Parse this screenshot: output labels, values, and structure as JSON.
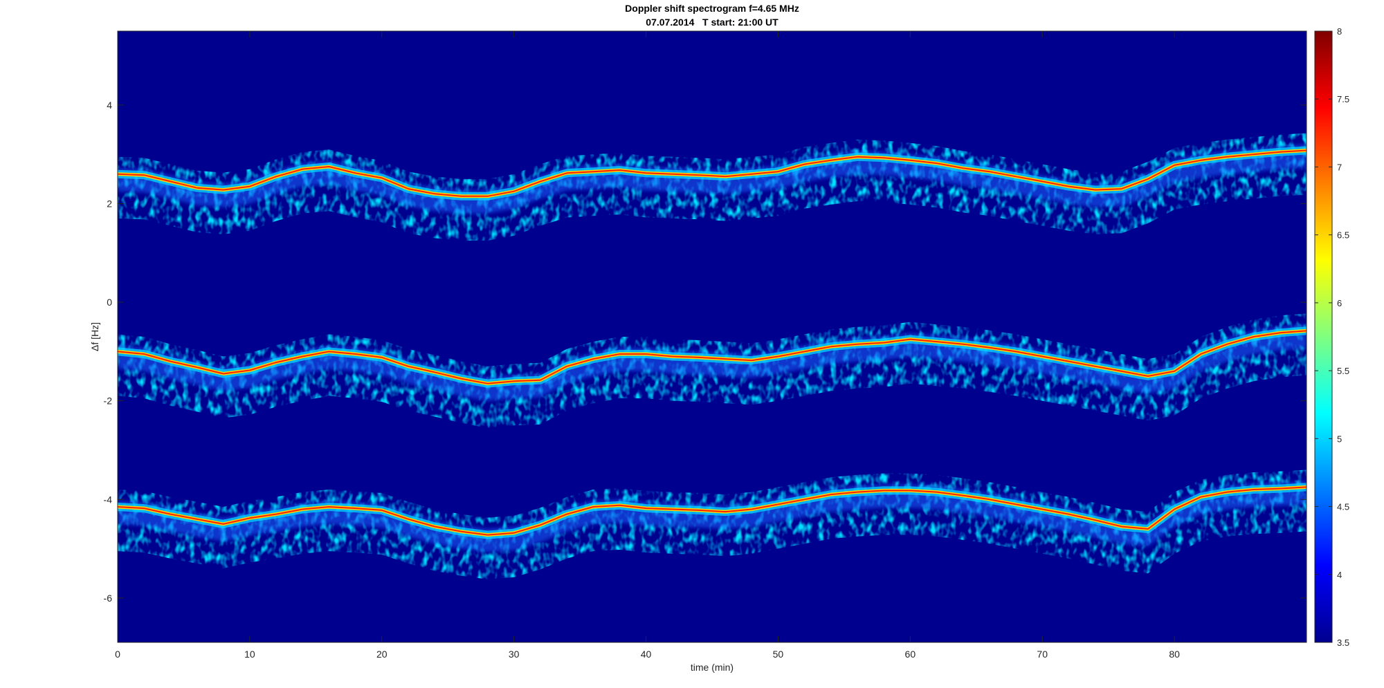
{
  "chart_data": {
    "type": "heatmap",
    "title": "Doppler shift spectrogram f=4.65 MHz",
    "subtitle": "07.07.2014   T start: 21:00 UT",
    "xlabel": "time (min)",
    "ylabel": "Δf [Hz]",
    "xlim": [
      0,
      90
    ],
    "ylim": [
      -6.9,
      5.5
    ],
    "xticks": [
      0,
      10,
      20,
      30,
      40,
      50,
      60,
      70,
      80
    ],
    "yticks": [
      -6,
      -4,
      -2,
      0,
      2,
      4
    ],
    "colorbar": {
      "range": [
        3.5,
        8
      ],
      "ticks": [
        3.5,
        4,
        4.5,
        5,
        5.5,
        6,
        6.5,
        7,
        7.5,
        8
      ],
      "colormap": "jet"
    },
    "background_color": "#00008f",
    "traces": [
      {
        "time": [
          0,
          2,
          4,
          6,
          8,
          10,
          12,
          14,
          16,
          18,
          20,
          22,
          24,
          26,
          28,
          30,
          32,
          34,
          36,
          38,
          40,
          42,
          44,
          46,
          48,
          50,
          52,
          54,
          56,
          58,
          60,
          62,
          64,
          66,
          68,
          70,
          72,
          74,
          76,
          78,
          80,
          82,
          84,
          86,
          88,
          90
        ],
        "df": [
          2.6,
          2.58,
          2.45,
          2.32,
          2.28,
          2.35,
          2.55,
          2.7,
          2.75,
          2.62,
          2.52,
          2.3,
          2.2,
          2.15,
          2.15,
          2.25,
          2.45,
          2.62,
          2.65,
          2.68,
          2.62,
          2.6,
          2.58,
          2.55,
          2.6,
          2.65,
          2.8,
          2.88,
          2.95,
          2.93,
          2.88,
          2.82,
          2.72,
          2.65,
          2.55,
          2.45,
          2.35,
          2.28,
          2.3,
          2.5,
          2.78,
          2.88,
          2.95,
          3.0,
          3.05,
          3.08
        ]
      },
      {
        "time": [
          0,
          2,
          4,
          6,
          8,
          10,
          12,
          14,
          16,
          18,
          20,
          22,
          24,
          26,
          28,
          30,
          32,
          34,
          36,
          38,
          40,
          42,
          44,
          46,
          48,
          50,
          52,
          54,
          56,
          58,
          60,
          62,
          64,
          66,
          68,
          70,
          72,
          74,
          76,
          78,
          80,
          82,
          84,
          86,
          88,
          90
        ],
        "df": [
          -1.0,
          -1.05,
          -1.2,
          -1.32,
          -1.45,
          -1.38,
          -1.22,
          -1.1,
          -1.0,
          -1.05,
          -1.12,
          -1.3,
          -1.42,
          -1.55,
          -1.65,
          -1.6,
          -1.58,
          -1.3,
          -1.15,
          -1.05,
          -1.05,
          -1.1,
          -1.12,
          -1.15,
          -1.18,
          -1.1,
          -1.0,
          -0.9,
          -0.85,
          -0.82,
          -0.75,
          -0.8,
          -0.85,
          -0.92,
          -1.0,
          -1.1,
          -1.2,
          -1.3,
          -1.4,
          -1.5,
          -1.4,
          -1.05,
          -0.85,
          -0.7,
          -0.62,
          -0.58
        ]
      },
      {
        "time": [
          0,
          2,
          4,
          6,
          8,
          10,
          12,
          14,
          16,
          18,
          20,
          22,
          24,
          26,
          28,
          30,
          32,
          34,
          36,
          38,
          40,
          42,
          44,
          46,
          48,
          50,
          52,
          54,
          56,
          58,
          60,
          62,
          64,
          66,
          68,
          70,
          72,
          74,
          76,
          78,
          80,
          82,
          84,
          86,
          88,
          90
        ],
        "df": [
          -4.15,
          -4.18,
          -4.3,
          -4.4,
          -4.5,
          -4.38,
          -4.3,
          -4.2,
          -4.15,
          -4.18,
          -4.22,
          -4.4,
          -4.55,
          -4.65,
          -4.72,
          -4.68,
          -4.52,
          -4.3,
          -4.15,
          -4.12,
          -4.18,
          -4.2,
          -4.22,
          -4.25,
          -4.2,
          -4.1,
          -4.0,
          -3.9,
          -3.85,
          -3.82,
          -3.82,
          -3.85,
          -3.92,
          -4.0,
          -4.1,
          -4.2,
          -4.3,
          -4.42,
          -4.55,
          -4.6,
          -4.2,
          -3.95,
          -3.85,
          -3.8,
          -3.78,
          -3.75
        ]
      }
    ]
  }
}
